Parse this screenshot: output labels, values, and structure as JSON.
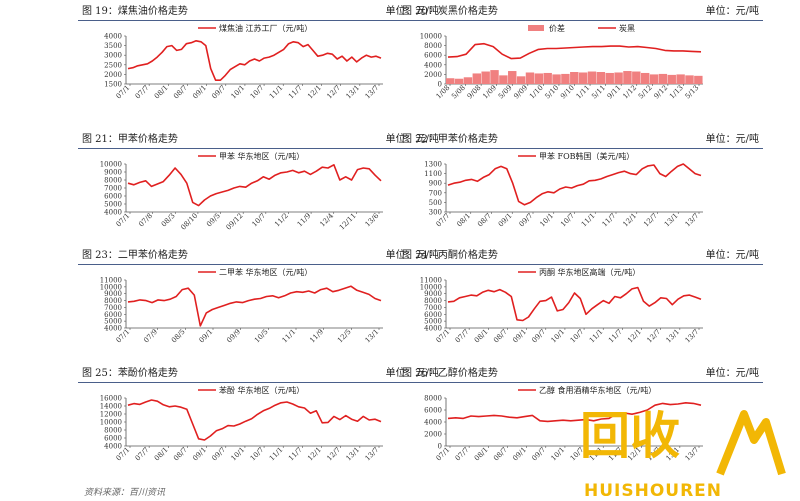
{
  "source_note": "资料来源：百川资讯",
  "logo": {
    "cn": "回收",
    "en": "HUISHOUREN"
  },
  "colors": {
    "series": "#e02020",
    "spread": "#f08080",
    "header_rule": "#4a5f8a"
  },
  "chart_data": [
    {
      "type": "line",
      "fig": "图 19：",
      "title": "煤焦油价格走势",
      "unit": "单位：元/吨",
      "legend": [
        "煤焦油  江苏工厂（元/吨）"
      ],
      "yticks": [
        "4000",
        "3500",
        "3000",
        "2500",
        "2000",
        "1500"
      ],
      "ylim": [
        1500,
        4000
      ],
      "xticks": [
        "07/1",
        "07/7",
        "08/1",
        "08/7",
        "09/1",
        "09/7",
        "10/1",
        "10/7",
        "11/1",
        "11/7",
        "12/1",
        "12/7",
        "13/1",
        "13/7"
      ],
      "series": [
        {
          "name": "煤焦油  江苏工厂（元/吨）",
          "values": [
            2300,
            2350,
            2450,
            2500,
            2550,
            2700,
            2900,
            3150,
            3450,
            3500,
            3250,
            3300,
            3600,
            3650,
            3750,
            3700,
            3500,
            2300,
            1700,
            1700,
            1950,
            2250,
            2400,
            2550,
            2500,
            2700,
            2800,
            2700,
            2850,
            2900,
            3000,
            3150,
            3300,
            3600,
            3700,
            3650,
            3450,
            3550,
            3250,
            2950,
            3000,
            3100,
            3050,
            2800,
            2950,
            2700,
            2900,
            2650,
            2850,
            3000,
            2900,
            2950,
            2850
          ]
        }
      ]
    },
    {
      "type": "line+bar",
      "fig": "图 20：",
      "title": "炭黑价格走势",
      "unit": "单位：元/吨",
      "legend": [
        "价差",
        "炭黑"
      ],
      "yticks": [
        "10000",
        "8000",
        "6000",
        "4000",
        "2000",
        "0"
      ],
      "ylim": [
        0,
        10000
      ],
      "xticks": [
        "1/08",
        "5/08",
        "9/08",
        "1/09",
        "5/09",
        "9/09",
        "1/10",
        "5/10",
        "9/10",
        "1/11",
        "5/11",
        "9/11",
        "1/12",
        "5/12",
        "9/12",
        "1/13",
        "5/13"
      ],
      "series": [
        {
          "name": "炭黑",
          "values": [
            5600,
            5700,
            6200,
            8200,
            8400,
            7800,
            6200,
            5300,
            5400,
            6400,
            7200,
            7400,
            7400,
            7500,
            7600,
            7700,
            7800,
            7800,
            7900,
            7900,
            7700,
            7800,
            7600,
            7400,
            7000,
            6900,
            6900,
            6800,
            6700
          ]
        },
        {
          "name": "价差",
          "values": [
            1200,
            1100,
            1400,
            2200,
            2600,
            2900,
            1800,
            2700,
            1600,
            2400,
            2200,
            2300,
            2000,
            2100,
            2500,
            2400,
            2600,
            2500,
            2300,
            2400,
            2700,
            2600,
            2300,
            2000,
            2100,
            1900,
            2000,
            1800,
            1700
          ]
        }
      ]
    },
    {
      "type": "line",
      "fig": "图 21：",
      "title": "甲苯价格走势",
      "unit": "单位：元/吨",
      "legend": [
        "甲苯  华东地区（元/吨）"
      ],
      "yticks": [
        "10000",
        "9000",
        "8000",
        "7000",
        "6000",
        "5000",
        "4000"
      ],
      "ylim": [
        4000,
        10000
      ],
      "xticks": [
        "07/1",
        "07/8",
        "08/3",
        "08/10",
        "09/5",
        "09/12",
        "10/7",
        "11/2",
        "11/9",
        "12/4",
        "12/11",
        "13/6"
      ],
      "series": [
        {
          "name": "甲苯  华东地区（元/吨）",
          "values": [
            7600,
            7400,
            7700,
            7900,
            7200,
            7500,
            7800,
            8600,
            9500,
            8700,
            7600,
            5200,
            4800,
            5500,
            6000,
            6300,
            6500,
            6700,
            7000,
            7200,
            7100,
            7600,
            7900,
            8400,
            8100,
            8600,
            8900,
            9000,
            9200,
            8900,
            9100,
            8700,
            9100,
            9600,
            9500,
            9900,
            8000,
            8400,
            8000,
            9300,
            9500,
            9400,
            8600,
            7900
          ]
        }
      ]
    },
    {
      "type": "line",
      "fig": "图 22：",
      "title": "甲苯价格走势",
      "unit": "单位：元/吨",
      "legend": [
        "甲苯  FOB韩国（美元/吨）"
      ],
      "yticks": [
        "1300",
        "1100",
        "900",
        "700",
        "500",
        "300"
      ],
      "ylim": [
        300,
        1300
      ],
      "xticks": [
        "07/7",
        "08/1",
        "08/7",
        "09/1",
        "09/7",
        "10/1",
        "10/7",
        "11/1",
        "11/7",
        "12/1",
        "12/7",
        "13/1",
        "13/7"
      ],
      "series": [
        {
          "name": "甲苯  FOB韩国（美元/吨）",
          "values": [
            860,
            900,
            920,
            960,
            980,
            940,
            1020,
            1080,
            1200,
            1250,
            1200,
            900,
            520,
            450,
            500,
            600,
            680,
            720,
            700,
            780,
            820,
            800,
            850,
            880,
            950,
            960,
            990,
            1040,
            1080,
            1120,
            1150,
            1100,
            1080,
            1200,
            1260,
            1280,
            1100,
            1040,
            1150,
            1250,
            1300,
            1200,
            1100,
            1060
          ]
        }
      ]
    },
    {
      "type": "line",
      "fig": "图 23：",
      "title": "二甲苯价格走势",
      "unit": "单位：元/吨",
      "legend": [
        "二甲苯  华东地区（元/吨）"
      ],
      "yticks": [
        "11000",
        "10000",
        "9000",
        "8000",
        "7000",
        "6000",
        "5000",
        "4000"
      ],
      "ylim": [
        4000,
        11000
      ],
      "xticks": [
        "07/1",
        "07/9",
        "08/5",
        "09/1",
        "09/9",
        "10/5",
        "11/1",
        "11/9",
        "12/5",
        "13/1"
      ],
      "series": [
        {
          "name": "二甲苯  华东地区（元/吨）",
          "values": [
            7800,
            7900,
            8100,
            8000,
            7700,
            8100,
            8000,
            8200,
            8600,
            9600,
            9800,
            8800,
            4300,
            6200,
            6700,
            7000,
            7300,
            7600,
            7800,
            7700,
            8000,
            8200,
            8300,
            8600,
            8700,
            8400,
            8700,
            9100,
            9300,
            9200,
            9400,
            9100,
            9600,
            9800,
            9300,
            9500,
            9800,
            10100,
            9500,
            9200,
            8900,
            8300,
            8000
          ]
        }
      ]
    },
    {
      "type": "line",
      "fig": "图 24：",
      "title": "丙酮价格走势",
      "unit": "单位：元/吨",
      "legend": [
        "丙酮  华东地区高端（元/吨）"
      ],
      "yticks": [
        "11000",
        "10000",
        "9000",
        "8000",
        "7000",
        "6000",
        "5000",
        "4000"
      ],
      "ylim": [
        4000,
        11000
      ],
      "xticks": [
        "07/1",
        "07/7",
        "08/1",
        "08/7",
        "09/1",
        "09/7",
        "10/1",
        "10/7",
        "11/1",
        "11/7",
        "12/1",
        "12/7",
        "13/1",
        "13/7"
      ],
      "series": [
        {
          "name": "丙酮  华东地区高端（元/吨）",
          "values": [
            7800,
            7900,
            8400,
            8600,
            8800,
            8700,
            9200,
            9500,
            9300,
            9600,
            9200,
            8600,
            5200,
            5100,
            5600,
            6800,
            7900,
            8000,
            8500,
            6500,
            6700,
            7700,
            9100,
            8300,
            6000,
            6800,
            7400,
            8000,
            7600,
            8600,
            8400,
            9000,
            9700,
            9900,
            7900,
            7200,
            7700,
            8400,
            8300,
            7400,
            8200,
            8700,
            8800,
            8500,
            8200
          ]
        }
      ]
    },
    {
      "type": "line",
      "fig": "图 25：",
      "title": "苯酚价格走势",
      "unit": "单位：元/吨",
      "legend": [
        "苯酚  华东地区（元/吨）"
      ],
      "yticks": [
        "16000",
        "14000",
        "12000",
        "10000",
        "8000",
        "6000",
        "4000"
      ],
      "ylim": [
        4000,
        16000
      ],
      "xticks": [
        "07/1",
        "07/7",
        "08/1",
        "08/7",
        "09/1",
        "09/7",
        "10/1",
        "10/7",
        "11/1",
        "11/7",
        "12/1",
        "12/7",
        "13/1",
        "13/7"
      ],
      "series": [
        {
          "name": "苯酚  华东地区（元/吨）",
          "values": [
            14200,
            14600,
            14400,
            15000,
            15500,
            15200,
            14300,
            13800,
            14000,
            13700,
            13200,
            9500,
            5800,
            5500,
            6500,
            7800,
            8300,
            9100,
            9000,
            9500,
            10200,
            10800,
            11900,
            12800,
            13400,
            14200,
            14800,
            15000,
            14500,
            13800,
            13500,
            12200,
            12800,
            9800,
            9900,
            11400,
            10600,
            11600,
            10700,
            10200,
            11400,
            10500,
            10700,
            10100
          ]
        }
      ]
    },
    {
      "type": "line",
      "fig": "图 26：",
      "title": "乙醇价格走势",
      "unit": "单位：元/吨",
      "legend": [
        "乙醇  食用酒精华东地区（元/吨）"
      ],
      "yticks": [
        "8000",
        "6000",
        "4000",
        "2000",
        "0"
      ],
      "ylim": [
        0,
        8000
      ],
      "xticks": [
        "07/1",
        "07/7",
        "08/1",
        "08/7",
        "09/1",
        "09/7",
        "10/1",
        "10/7",
        "11/1",
        "11/7",
        "12/1",
        "12/7",
        "13/1",
        "13/7"
      ],
      "series": [
        {
          "name": "乙醇  食用酒精华东地区（元/吨）",
          "values": [
            4600,
            4700,
            4600,
            5000,
            4900,
            5000,
            5100,
            5000,
            4800,
            4700,
            4900,
            5100,
            4200,
            4100,
            4200,
            4300,
            4200,
            4300,
            4400,
            4200,
            4500,
            4600,
            5400,
            5500,
            5300,
            5600,
            6000,
            6800,
            7100,
            6900,
            7000,
            7200,
            7100,
            6800
          ]
        }
      ]
    }
  ]
}
